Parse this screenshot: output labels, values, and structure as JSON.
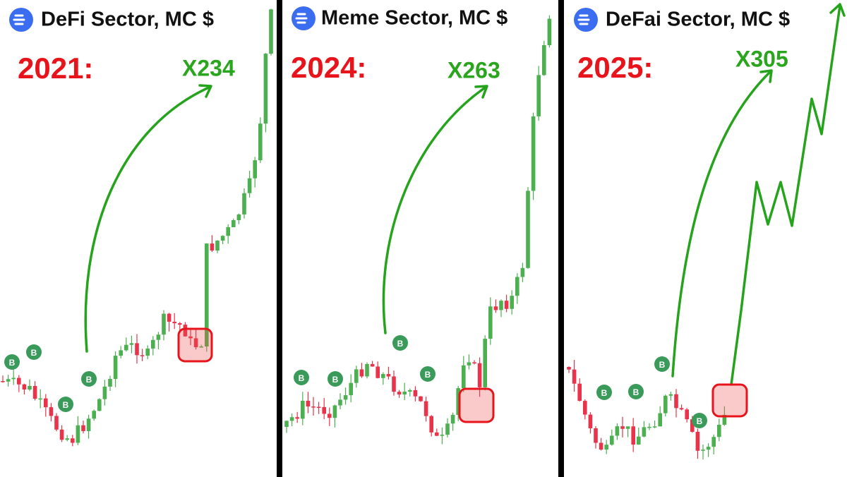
{
  "panels": [
    {
      "title": "DeFi Sector, MC $",
      "year": "2021:",
      "multiplier": "X234",
      "markers": [
        "B",
        "B",
        "B",
        "B"
      ]
    },
    {
      "title": "Meme Sector, MC $",
      "year": "2024:",
      "multiplier": "X263",
      "markers": [
        "B",
        "B",
        "B",
        "B"
      ]
    },
    {
      "title": "DeFai Sector, MC $",
      "year": "2025:",
      "multiplier": "X305",
      "markers": [
        "B",
        "B",
        "B",
        "B"
      ]
    }
  ]
}
